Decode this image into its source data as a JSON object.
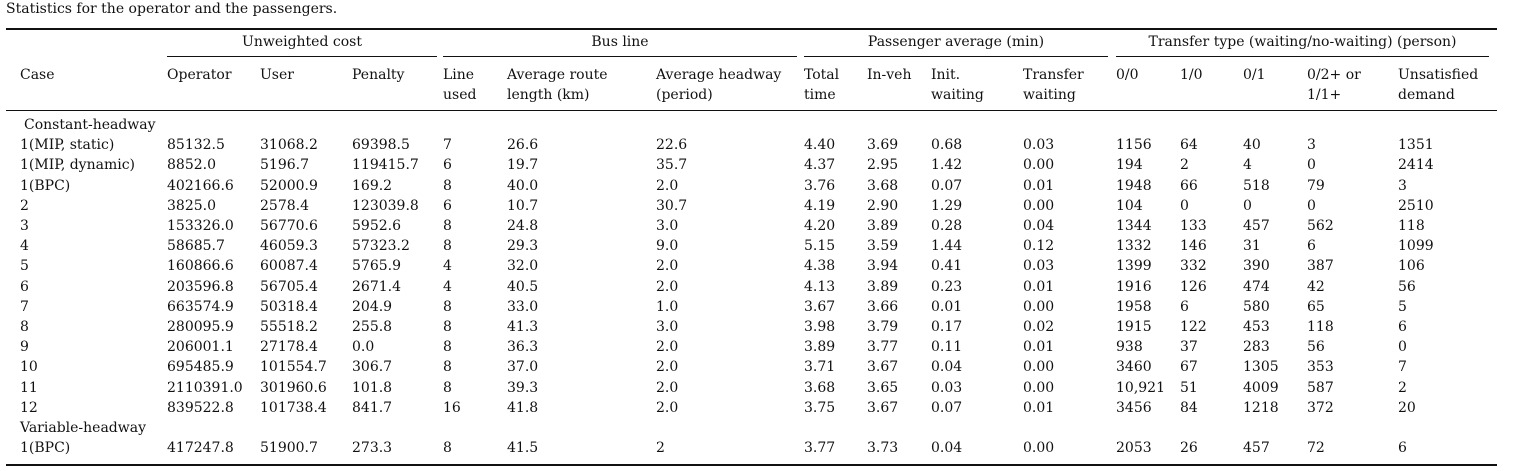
{
  "caption": "Statistics for the operator and the passengers.",
  "groups": [
    {
      "label": "Unweighted cost"
    },
    {
      "label": "Bus line"
    },
    {
      "label": "Passenger average (min)"
    },
    {
      "label": "Transfer type (waiting/no-waiting) (person)"
    }
  ],
  "columns": [
    {
      "line1": "Case",
      "line2": ""
    },
    {
      "line1": "Operator",
      "line2": ""
    },
    {
      "line1": "User",
      "line2": ""
    },
    {
      "line1": "Penalty",
      "line2": ""
    },
    {
      "line1": "Line",
      "line2": "used"
    },
    {
      "line1": "Average route",
      "line2": "length (km)"
    },
    {
      "line1": "Average headway",
      "line2": "(period)"
    },
    {
      "line1": "Total",
      "line2": "time"
    },
    {
      "line1": "In-veh",
      "line2": ""
    },
    {
      "line1": "Init.",
      "line2": "waiting"
    },
    {
      "line1": "Transfer",
      "line2": "waiting"
    },
    {
      "line1": "0/0",
      "line2": ""
    },
    {
      "line1": "1/0",
      "line2": ""
    },
    {
      "line1": "0/1",
      "line2": ""
    },
    {
      "line1": "0/2+ or",
      "line2": "1/1+"
    },
    {
      "line1": "Unsatisfied",
      "line2": "demand"
    }
  ],
  "sections": [
    {
      "title": "Constant-headway",
      "rows": [
        [
          "1(MIP, static)",
          "85132.5",
          "31068.2",
          "69398.5",
          "7",
          "26.6",
          "22.6",
          "4.40",
          "3.69",
          "0.68",
          "0.03",
          "1156",
          "64",
          "40",
          "3",
          "1351"
        ],
        [
          "1(MIP, dynamic)",
          "8852.0",
          "5196.7",
          "119415.7",
          "6",
          "19.7",
          "35.7",
          "4.37",
          "2.95",
          "1.42",
          "0.00",
          "194",
          "2",
          "4",
          "0",
          "2414"
        ],
        [
          "1(BPC)",
          "402166.6",
          "52000.9",
          "169.2",
          "8",
          "40.0",
          "2.0",
          "3.76",
          "3.68",
          "0.07",
          "0.01",
          "1948",
          "66",
          "518",
          "79",
          "3"
        ],
        [
          "2",
          "3825.0",
          "2578.4",
          "123039.8",
          "6",
          "10.7",
          "30.7",
          "4.19",
          "2.90",
          "1.29",
          "0.00",
          "104",
          "0",
          "0",
          "0",
          "2510"
        ],
        [
          "3",
          "153326.0",
          "56770.6",
          "5952.6",
          "8",
          "24.8",
          "3.0",
          "4.20",
          "3.89",
          "0.28",
          "0.04",
          "1344",
          "133",
          "457",
          "562",
          "118"
        ],
        [
          "4",
          "58685.7",
          "46059.3",
          "57323.2",
          "8",
          "29.3",
          "9.0",
          "5.15",
          "3.59",
          "1.44",
          "0.12",
          "1332",
          "146",
          "31",
          "6",
          "1099"
        ],
        [
          "5",
          "160866.6",
          "60087.4",
          "5765.9",
          "4",
          "32.0",
          "2.0",
          "4.38",
          "3.94",
          "0.41",
          "0.03",
          "1399",
          "332",
          "390",
          "387",
          "106"
        ],
        [
          "6",
          "203596.8",
          "56705.4",
          "2671.4",
          "4",
          "40.5",
          "2.0",
          "4.13",
          "3.89",
          "0.23",
          "0.01",
          "1916",
          "126",
          "474",
          "42",
          "56"
        ],
        [
          "7",
          "663574.9",
          "50318.4",
          "204.9",
          "8",
          "33.0",
          "1.0",
          "3.67",
          "3.66",
          "0.01",
          "0.00",
          "1958",
          "6",
          "580",
          "65",
          "5"
        ],
        [
          "8",
          "280095.9",
          "55518.2",
          "255.8",
          "8",
          "41.3",
          "3.0",
          "3.98",
          "3.79",
          "0.17",
          "0.02",
          "1915",
          "122",
          "453",
          "118",
          "6"
        ],
        [
          "9",
          "206001.1",
          "27178.4",
          "0.0",
          "8",
          "36.3",
          "2.0",
          "3.89",
          "3.77",
          "0.11",
          "0.01",
          "938",
          "37",
          "283",
          "56",
          "0"
        ],
        [
          "10",
          "695485.9",
          "101554.7",
          "306.7",
          "8",
          "37.0",
          "2.0",
          "3.71",
          "3.67",
          "0.04",
          "0.00",
          "3460",
          "67",
          "1305",
          "353",
          "7"
        ],
        [
          "11",
          "2110391.0",
          "301960.6",
          "101.8",
          "8",
          "39.3",
          "2.0",
          "3.68",
          "3.65",
          "0.03",
          "0.00",
          "10,921",
          "51",
          "4009",
          "587",
          "2"
        ],
        [
          "12",
          "839522.8",
          "101738.4",
          "841.7",
          "16",
          "41.8",
          "2.0",
          "3.75",
          "3.67",
          "0.07",
          "0.01",
          "3456",
          "84",
          "1218",
          "372",
          "20"
        ]
      ]
    },
    {
      "title": "Variable-headway",
      "rows": [
        [
          "1(BPC)",
          "417247.8",
          "51900.7",
          "273.3",
          "8",
          "41.5",
          "2",
          "3.77",
          "3.73",
          "0.04",
          "0.00",
          "2053",
          "26",
          "457",
          "72",
          "6"
        ]
      ]
    }
  ]
}
